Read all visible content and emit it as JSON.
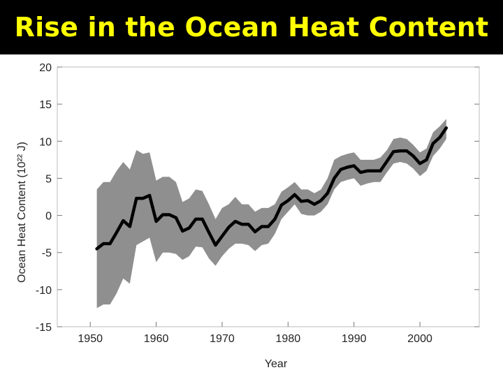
{
  "slide": {
    "title": "Rise in the Ocean Heat Content"
  },
  "chart_data": {
    "type": "line",
    "title": "Rise in the Ocean Heat Content",
    "xlabel": "Year",
    "ylabel": "Ocean Heat Content (10²² J)",
    "xlim": [
      1945,
      2009
    ],
    "ylim": [
      -15,
      20
    ],
    "xticks": [
      1950,
      1960,
      1970,
      1980,
      1990,
      2000
    ],
    "yticks": [
      20,
      15,
      10,
      5,
      0,
      -5,
      -10,
      -15
    ],
    "grid": false,
    "legend": "none",
    "colors": {
      "line": "#000000",
      "band": "#8f8f8f"
    },
    "series": [
      {
        "x": [
          1951,
          1952,
          1953,
          1954,
          1955,
          1956,
          1957,
          1958,
          1959,
          1960,
          1961,
          1962,
          1963,
          1964,
          1965,
          1966,
          1967,
          1968,
          1969,
          1970,
          1971,
          1972,
          1973,
          1974,
          1975,
          1976,
          1977,
          1978,
          1979,
          1980,
          1981,
          1982,
          1983,
          1984,
          1985,
          1986,
          1987,
          1988,
          1989,
          1990,
          1991,
          1992,
          1993,
          1994,
          1995,
          1996,
          1997,
          1998,
          1999,
          2000,
          2001,
          2002,
          2003,
          2004
        ],
        "y": [
          -4.5,
          -3.8,
          -3.8,
          -2.3,
          -0.7,
          -1.5,
          2.3,
          2.3,
          2.7,
          -0.8,
          0.1,
          0.1,
          -0.3,
          -2.1,
          -1.7,
          -0.5,
          -0.5,
          -2.3,
          -4.0,
          -2.8,
          -1.6,
          -0.8,
          -1.2,
          -1.2,
          -2.2,
          -1.5,
          -1.5,
          -0.5,
          1.4,
          2.0,
          2.8,
          1.9,
          2.0,
          1.5,
          2.0,
          3.0,
          5.0,
          6.2,
          6.5,
          6.7,
          5.8,
          6.0,
          6.0,
          6.0,
          7.3,
          8.6,
          8.7,
          8.7,
          8.0,
          7.0,
          7.5,
          9.7,
          10.5,
          11.8
        ],
        "y_upper": [
          3.5,
          4.5,
          4.5,
          6.0,
          7.2,
          6.2,
          8.8,
          8.3,
          8.5,
          4.7,
          5.2,
          5.2,
          4.5,
          1.8,
          2.3,
          3.5,
          3.3,
          1.5,
          -0.5,
          1.0,
          1.5,
          2.5,
          1.5,
          1.5,
          0.5,
          1.0,
          1.0,
          1.5,
          3.2,
          3.8,
          4.5,
          3.5,
          3.5,
          3.0,
          3.5,
          5.0,
          7.5,
          8.0,
          8.3,
          8.5,
          7.5,
          7.5,
          7.5,
          7.8,
          8.8,
          10.3,
          10.5,
          10.3,
          9.5,
          8.5,
          9.0,
          11.2,
          12.0,
          13.0
        ],
        "y_lower": [
          -12.5,
          -12.0,
          -12.0,
          -10.5,
          -8.5,
          -9.2,
          -4.0,
          -3.5,
          -3.0,
          -6.3,
          -5.0,
          -5.0,
          -5.2,
          -6.0,
          -5.5,
          -4.2,
          -4.3,
          -5.8,
          -6.8,
          -5.5,
          -4.5,
          -3.8,
          -3.8,
          -4.0,
          -4.8,
          -4.0,
          -3.8,
          -2.5,
          -0.5,
          0.5,
          1.5,
          0.2,
          0.0,
          0.0,
          0.5,
          1.5,
          3.5,
          4.5,
          4.8,
          5.0,
          4.0,
          4.3,
          4.5,
          4.5,
          5.8,
          7.0,
          7.2,
          7.0,
          6.3,
          5.3,
          6.0,
          8.0,
          9.0,
          10.3
        ]
      }
    ]
  }
}
